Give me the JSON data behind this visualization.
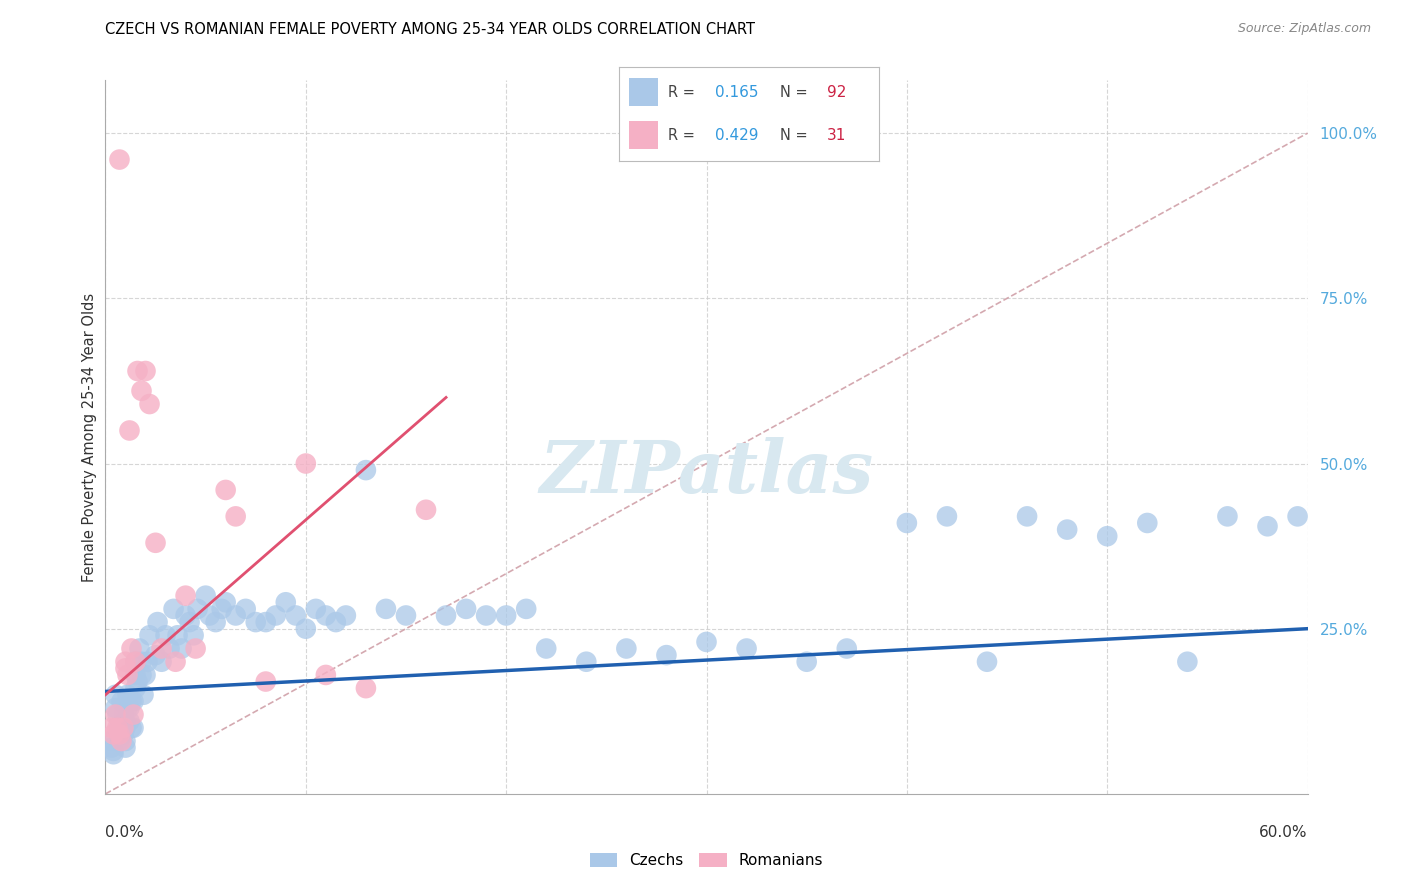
{
  "title": "CZECH VS ROMANIAN FEMALE POVERTY AMONG 25-34 YEAR OLDS CORRELATION CHART",
  "source": "Source: ZipAtlas.com",
  "ylabel": "Female Poverty Among 25-34 Year Olds",
  "right_ytick_labels": [
    "25.0%",
    "50.0%",
    "75.0%",
    "100.0%"
  ],
  "right_ytick_vals": [
    0.25,
    0.5,
    0.75,
    1.0
  ],
  "xlim": [
    0.0,
    0.6
  ],
  "ylim": [
    0.0,
    1.08
  ],
  "czech_R": "0.165",
  "czech_N": "92",
  "romanian_R": "0.429",
  "romanian_N": "31",
  "czech_color": "#aac8e8",
  "romanian_color": "#f5b0c5",
  "czech_line_color": "#2060b0",
  "romanian_line_color": "#e05070",
  "ref_line_color": "#d0a0a8",
  "legend_R_color": "#3399dd",
  "legend_N_color": "#cc2244",
  "axis_label_color": "#55aadd",
  "watermark_color": "#d8e8f0",
  "czech_x": [
    0.005,
    0.005,
    0.006,
    0.007,
    0.007,
    0.008,
    0.008,
    0.009,
    0.009,
    0.01,
    0.01,
    0.01,
    0.011,
    0.011,
    0.012,
    0.012,
    0.013,
    0.013,
    0.014,
    0.014,
    0.015,
    0.015,
    0.016,
    0.017,
    0.018,
    0.018,
    0.019,
    0.02,
    0.021,
    0.022,
    0.025,
    0.026,
    0.028,
    0.03,
    0.032,
    0.034,
    0.036,
    0.038,
    0.04,
    0.042,
    0.044,
    0.046,
    0.05,
    0.052,
    0.055,
    0.058,
    0.06,
    0.065,
    0.07,
    0.075,
    0.08,
    0.085,
    0.09,
    0.095,
    0.1,
    0.105,
    0.11,
    0.115,
    0.12,
    0.13,
    0.14,
    0.15,
    0.17,
    0.18,
    0.19,
    0.2,
    0.21,
    0.22,
    0.24,
    0.26,
    0.28,
    0.3,
    0.32,
    0.35,
    0.37,
    0.4,
    0.42,
    0.44,
    0.46,
    0.48,
    0.5,
    0.52,
    0.54,
    0.56,
    0.58,
    0.595,
    0.003,
    0.003,
    0.004,
    0.004,
    0.01,
    0.015
  ],
  "czech_y": [
    0.15,
    0.13,
    0.12,
    0.1,
    0.08,
    0.14,
    0.1,
    0.12,
    0.09,
    0.11,
    0.1,
    0.08,
    0.13,
    0.15,
    0.13,
    0.11,
    0.14,
    0.1,
    0.14,
    0.1,
    0.2,
    0.18,
    0.17,
    0.22,
    0.2,
    0.18,
    0.15,
    0.18,
    0.2,
    0.24,
    0.21,
    0.26,
    0.2,
    0.24,
    0.22,
    0.28,
    0.24,
    0.22,
    0.27,
    0.26,
    0.24,
    0.28,
    0.3,
    0.27,
    0.26,
    0.28,
    0.29,
    0.27,
    0.28,
    0.26,
    0.26,
    0.27,
    0.29,
    0.27,
    0.25,
    0.28,
    0.27,
    0.26,
    0.27,
    0.49,
    0.28,
    0.27,
    0.27,
    0.28,
    0.27,
    0.27,
    0.28,
    0.22,
    0.2,
    0.22,
    0.21,
    0.23,
    0.22,
    0.2,
    0.22,
    0.41,
    0.42,
    0.2,
    0.42,
    0.4,
    0.39,
    0.41,
    0.2,
    0.42,
    0.405,
    0.42,
    0.08,
    0.07,
    0.06,
    0.065,
    0.07,
    0.16
  ],
  "romanian_x": [
    0.003,
    0.004,
    0.005,
    0.006,
    0.007,
    0.007,
    0.008,
    0.009,
    0.01,
    0.01,
    0.011,
    0.012,
    0.013,
    0.014,
    0.015,
    0.016,
    0.018,
    0.02,
    0.022,
    0.025,
    0.028,
    0.035,
    0.04,
    0.045,
    0.06,
    0.065,
    0.08,
    0.1,
    0.11,
    0.13,
    0.16
  ],
  "romanian_y": [
    0.1,
    0.09,
    0.12,
    0.1,
    0.09,
    0.96,
    0.08,
    0.1,
    0.2,
    0.19,
    0.18,
    0.55,
    0.22,
    0.12,
    0.2,
    0.64,
    0.61,
    0.64,
    0.59,
    0.38,
    0.22,
    0.2,
    0.3,
    0.22,
    0.46,
    0.42,
    0.17,
    0.5,
    0.18,
    0.16,
    0.43
  ]
}
